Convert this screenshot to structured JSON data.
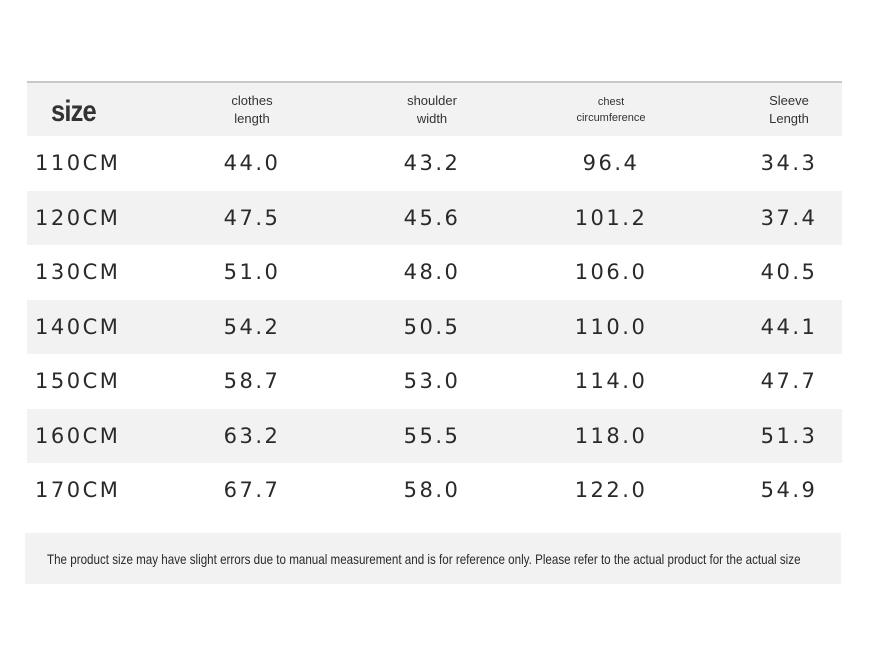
{
  "header": {
    "size": "size",
    "col1": [
      "clothes",
      "length"
    ],
    "col2": [
      "shoulder",
      "width"
    ],
    "col3": [
      "chest",
      "circumference"
    ],
    "col4": [
      "Sleeve",
      "Length"
    ]
  },
  "rows": [
    {
      "size": "110CM",
      "length": "44.0",
      "shoulder": "43.2",
      "chest": "96.4",
      "sleeve": "34.3"
    },
    {
      "size": "120CM",
      "length": "47.5",
      "shoulder": "45.6",
      "chest": "101.2",
      "sleeve": "37.4"
    },
    {
      "size": "130CM",
      "length": "51.0",
      "shoulder": "48.0",
      "chest": "106.0",
      "sleeve": "40.5"
    },
    {
      "size": "140CM",
      "length": "54.2",
      "shoulder": "50.5",
      "chest": "110.0",
      "sleeve": "44.1"
    },
    {
      "size": "150CM",
      "length": "58.7",
      "shoulder": "53.0",
      "chest": "114.0",
      "sleeve": "47.7"
    },
    {
      "size": "160CM",
      "length": "63.2",
      "shoulder": "55.5",
      "chest": "118.0",
      "sleeve": "51.3"
    },
    {
      "size": "170CM",
      "length": "67.7",
      "shoulder": "58.0",
      "chest": "122.0",
      "sleeve": "54.9"
    }
  ],
  "note": "The product size may have slight errors due to manual measurement and is for reference only. Please refer to the actual product for the actual size",
  "colors": {
    "shade": "#f2f2f2",
    "rule": "#c9c9c9",
    "text": "#2a2a2a"
  }
}
